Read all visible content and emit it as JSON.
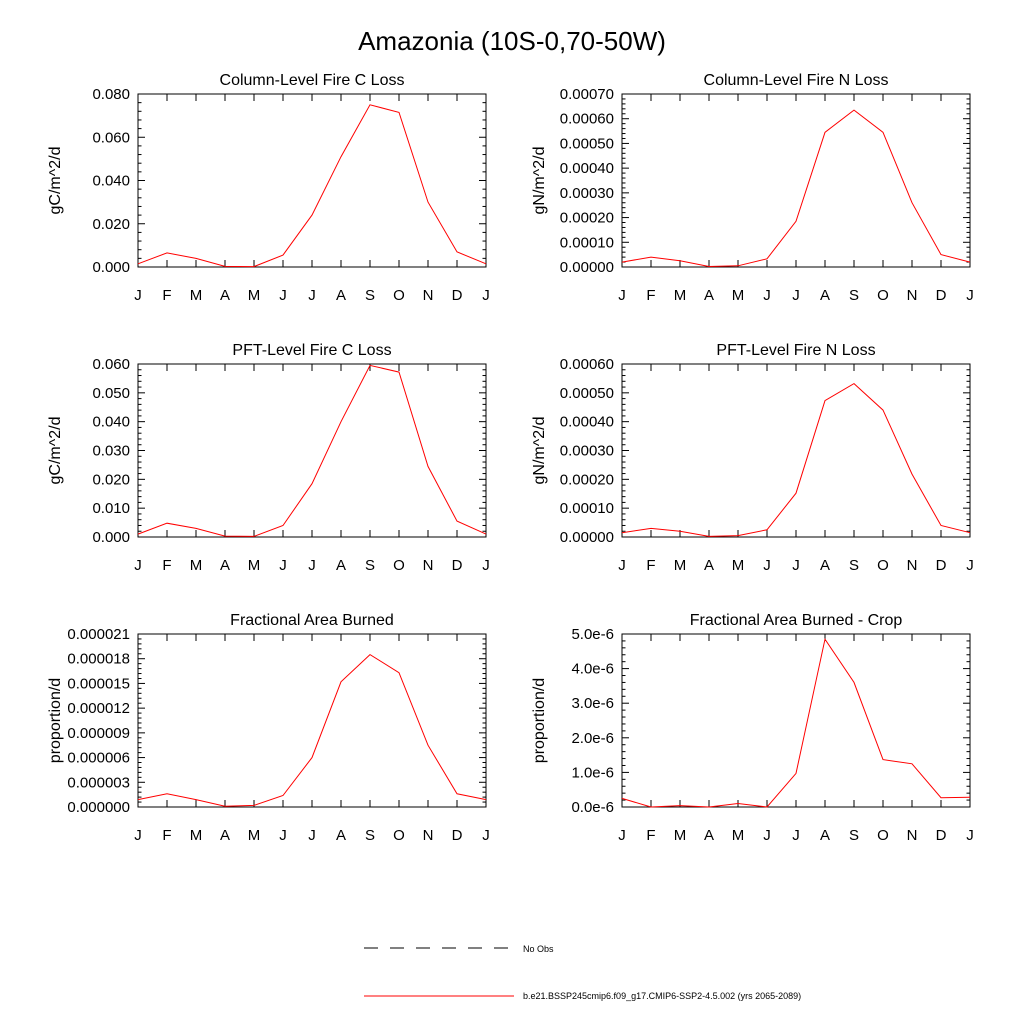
{
  "figure_title": "Amazonia (10S-0,70-50W)",
  "legend": {
    "obs_label": "No Obs",
    "model_label": "b.e21.BSSP245cmip6.f09_g17.CMIP6-SSP2-4.5.002 (yrs 2065-2089)",
    "model_color": "#ff0000",
    "obs_color": "#000000"
  },
  "chart_data": [
    {
      "type": "line",
      "title": "Column-Level Fire C Loss",
      "ylabel": "gC/m^2/d",
      "x": [
        "J",
        "F",
        "M",
        "A",
        "M",
        "J",
        "J",
        "A",
        "S",
        "O",
        "N",
        "D",
        "J"
      ],
      "ylim": [
        0,
        0.08
      ],
      "yticks": [
        "0.000",
        "0.020",
        "0.040",
        "0.060",
        "0.080"
      ],
      "series": [
        {
          "values": [
            0.0015,
            0.0065,
            0.004,
            0.0003,
            0.0002,
            0.0055,
            0.024,
            0.051,
            0.075,
            0.0715,
            0.03,
            0.007,
            0.0015
          ]
        }
      ]
    },
    {
      "type": "line",
      "title": "Column-Level Fire N Loss",
      "ylabel": "gN/m^2/d",
      "x": [
        "J",
        "F",
        "M",
        "A",
        "M",
        "J",
        "J",
        "A",
        "S",
        "O",
        "N",
        "D",
        "J"
      ],
      "ylim": [
        0,
        0.0007
      ],
      "yticks": [
        "0.00000",
        "0.00010",
        "0.00020",
        "0.00030",
        "0.00040",
        "0.00050",
        "0.00060",
        "0.00070"
      ],
      "series": [
        {
          "values": [
            2e-05,
            4e-05,
            2.5e-05,
            2e-06,
            5e-06,
            3.3e-05,
            0.000185,
            0.000545,
            0.000635,
            0.000545,
            0.00026,
            5e-05,
            2e-05
          ]
        }
      ]
    },
    {
      "type": "line",
      "title": "PFT-Level Fire C Loss",
      "ylabel": "gC/m^2/d",
      "x": [
        "J",
        "F",
        "M",
        "A",
        "M",
        "J",
        "J",
        "A",
        "S",
        "O",
        "N",
        "D",
        "J"
      ],
      "ylim": [
        0,
        0.06
      ],
      "yticks": [
        "0.000",
        "0.010",
        "0.020",
        "0.030",
        "0.040",
        "0.050",
        "0.060"
      ],
      "series": [
        {
          "values": [
            0.001,
            0.0048,
            0.003,
            0.0003,
            0.0002,
            0.004,
            0.0185,
            0.04,
            0.0595,
            0.0572,
            0.0245,
            0.0055,
            0.001
          ]
        }
      ]
    },
    {
      "type": "line",
      "title": "PFT-Level Fire N Loss",
      "ylabel": "gN/m^2/d",
      "x": [
        "J",
        "F",
        "M",
        "A",
        "M",
        "J",
        "J",
        "A",
        "S",
        "O",
        "N",
        "D",
        "J"
      ],
      "ylim": [
        0,
        0.0006
      ],
      "yticks": [
        "0.00000",
        "0.00010",
        "0.00020",
        "0.00030",
        "0.00040",
        "0.00050",
        "0.00060"
      ],
      "series": [
        {
          "values": [
            1.5e-05,
            3e-05,
            2e-05,
            2e-06,
            5e-06,
            2.5e-05,
            0.000152,
            0.000473,
            0.000532,
            0.00044,
            0.000218,
            4e-05,
            1.5e-05
          ]
        }
      ]
    },
    {
      "type": "line",
      "title": "Fractional Area Burned",
      "ylabel": "proportion/d",
      "x": [
        "J",
        "F",
        "M",
        "A",
        "M",
        "J",
        "J",
        "A",
        "S",
        "O",
        "N",
        "D",
        "J"
      ],
      "ylim": [
        0,
        2.1e-05
      ],
      "yticks": [
        "0.000000",
        "0.000003",
        "0.000006",
        "0.000009",
        "0.000012",
        "0.000015",
        "0.000018",
        "0.000021"
      ],
      "series": [
        {
          "values": [
            9e-07,
            1.6e-06,
            9e-07,
            1e-07,
            2e-07,
            1.4e-06,
            6e-06,
            1.52e-05,
            1.85e-05,
            1.63e-05,
            7.5e-06,
            1.6e-06,
            9e-07
          ]
        }
      ]
    },
    {
      "type": "line",
      "title": "Fractional Area Burned - Crop",
      "ylabel": "proportion/d",
      "x": [
        "J",
        "F",
        "M",
        "A",
        "M",
        "J",
        "J",
        "A",
        "S",
        "O",
        "N",
        "D",
        "J"
      ],
      "ylim": [
        0,
        5e-06
      ],
      "yticks": [
        "0.0e-6",
        "1.0e-6",
        "2.0e-6",
        "3.0e-6",
        "4.0e-6",
        "5.0e-6"
      ],
      "series": [
        {
          "values": [
            2.5e-07,
            0.0,
            4e-08,
            0.0,
            1e-07,
            0.0,
            9.7e-07,
            4.85e-06,
            3.6e-06,
            1.37e-06,
            1.25e-06,
            2.7e-07,
            2.8e-07
          ]
        }
      ]
    }
  ]
}
